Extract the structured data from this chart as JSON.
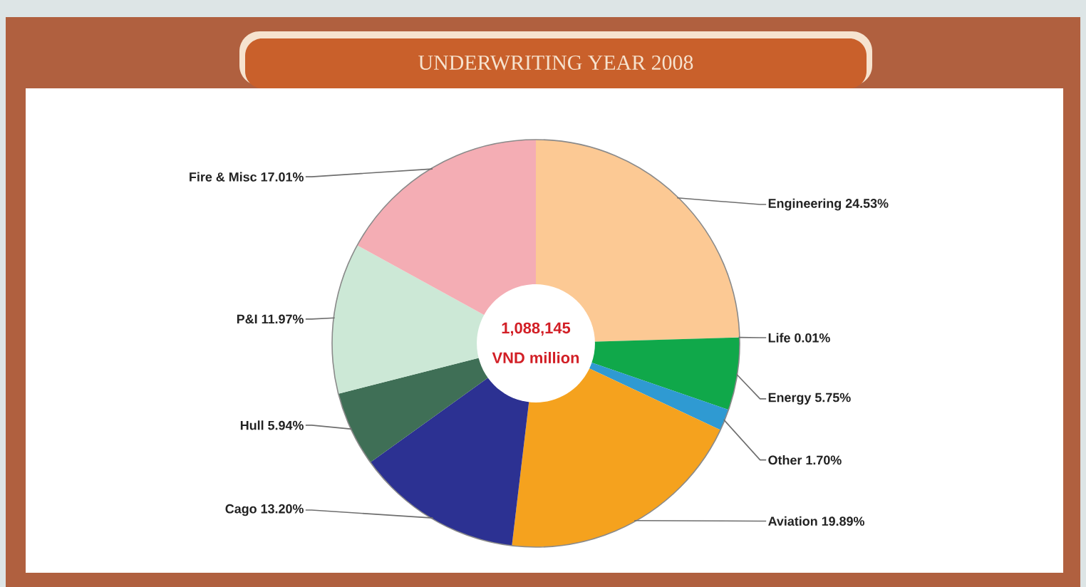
{
  "chart_data": {
    "type": "donut",
    "title": "UNDERWRITING YEAR 2008",
    "categories": [
      "Engineering",
      "Life",
      "Energy",
      "Other",
      "Aviation",
      "Cago",
      "Hull",
      "P&I",
      "Fire & Misc"
    ],
    "values": [
      24.53,
      0.01,
      5.75,
      1.7,
      19.89,
      13.2,
      5.94,
      11.97,
      17.01
    ],
    "colors": [
      "#fcc994",
      "#f4f4f4",
      "#10a84a",
      "#2f9ad2",
      "#f5a21e",
      "#2c3192",
      "#3f6f56",
      "#cce8d6",
      "#f4adb4"
    ],
    "value_labels": [
      "24.53%",
      "0.01%",
      "5.75%",
      "1.70%",
      "19.89%",
      "13.20%",
      "5.94%",
      "11.97%",
      "17.01%"
    ],
    "annotations": [
      "1,088,145",
      "VND million"
    ]
  }
}
